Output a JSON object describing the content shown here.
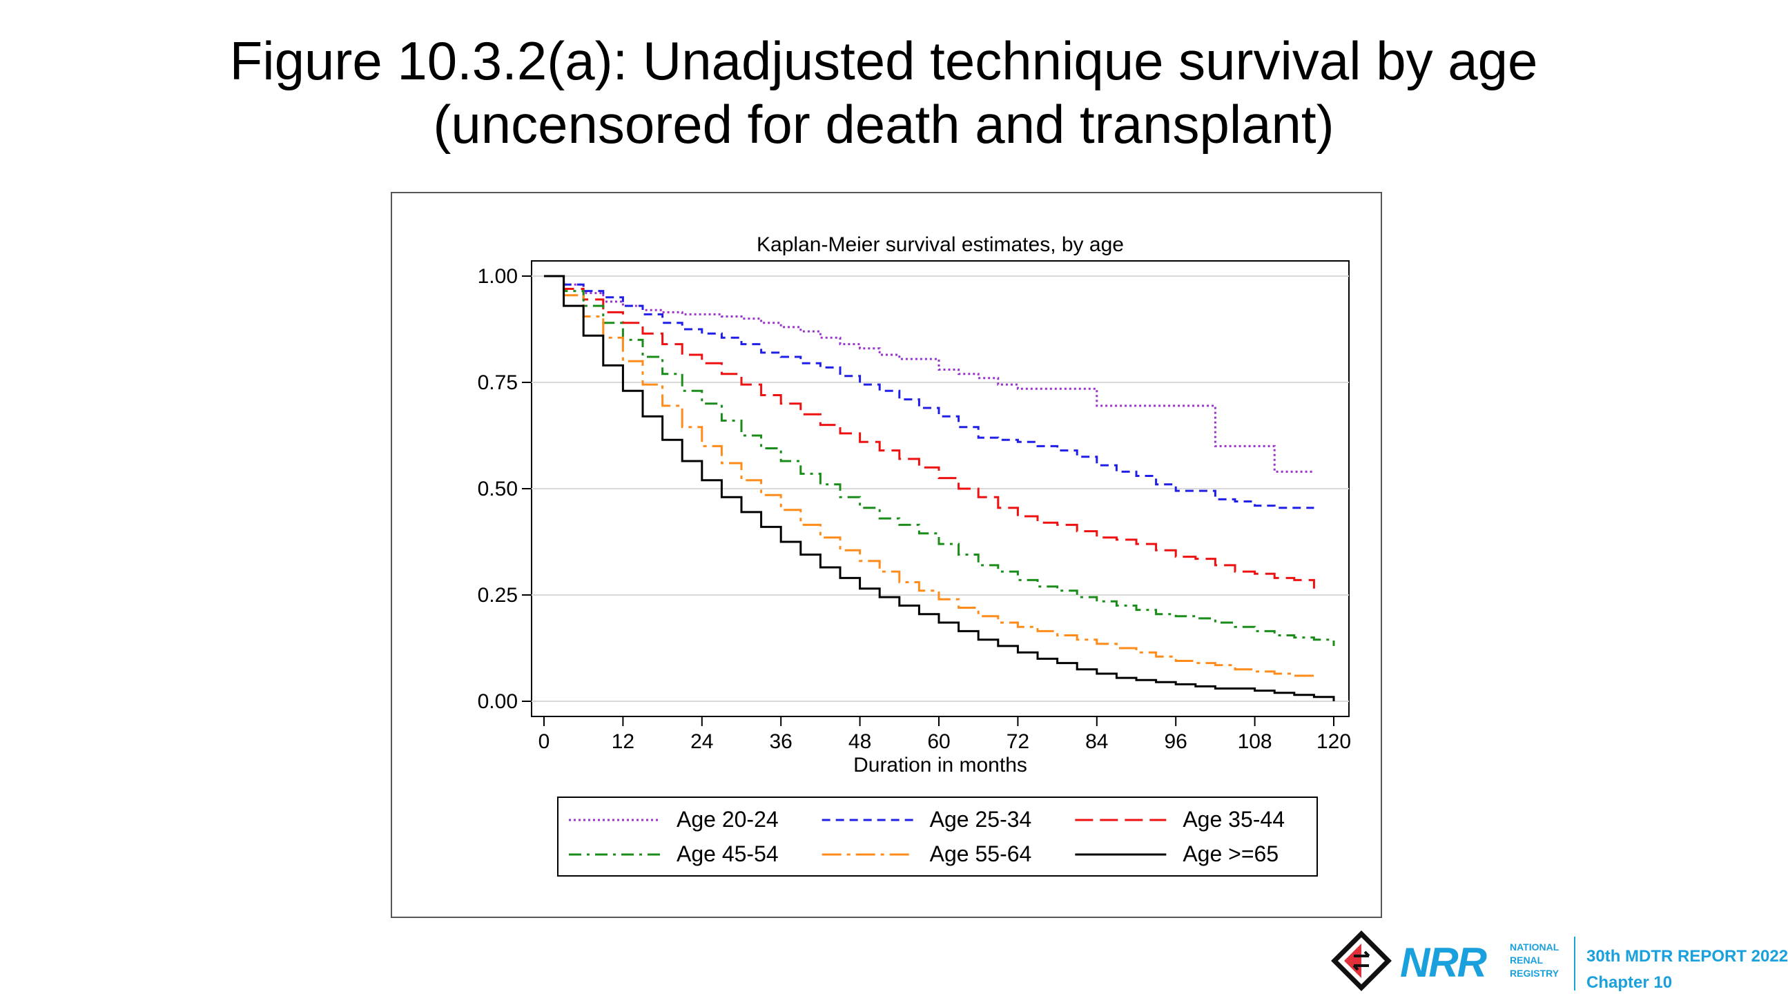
{
  "title": {
    "line1": "Figure 10.3.2(a): Unadjusted technique survival by age",
    "line2": "(uncensored for death and transplant)"
  },
  "chart_data": {
    "type": "line",
    "step": true,
    "title": "Kaplan-Meier survival estimates, by age",
    "xlabel": "Duration in months",
    "ylabel": "",
    "xlim": [
      0,
      120
    ],
    "ylim": [
      0,
      1
    ],
    "xticks": [
      "0",
      "12",
      "24",
      "36",
      "48",
      "60",
      "72",
      "84",
      "96",
      "108",
      "120"
    ],
    "yticks": [
      "0.00",
      "0.25",
      "0.50",
      "0.75",
      "1.00"
    ],
    "grid": "horizontal",
    "legend_position": "bottom",
    "series": [
      {
        "name": "Age 20-24",
        "color": "#9932cc",
        "dash": "dotted",
        "x": [
          0,
          3,
          6,
          9,
          12,
          15,
          18,
          21,
          24,
          27,
          30,
          33,
          36,
          39,
          42,
          45,
          48,
          51,
          54,
          57,
          60,
          63,
          66,
          69,
          72,
          75,
          78,
          81,
          84,
          87,
          90,
          93,
          96,
          99,
          102,
          105,
          108,
          111,
          114,
          117
        ],
        "values": [
          1.0,
          0.98,
          0.96,
          0.94,
          0.93,
          0.92,
          0.915,
          0.91,
          0.91,
          0.905,
          0.9,
          0.89,
          0.88,
          0.87,
          0.855,
          0.84,
          0.83,
          0.815,
          0.805,
          0.805,
          0.78,
          0.77,
          0.76,
          0.745,
          0.735,
          0.735,
          0.735,
          0.735,
          0.695,
          0.695,
          0.695,
          0.695,
          0.695,
          0.695,
          0.6,
          0.6,
          0.6,
          0.54,
          0.54,
          0.54
        ]
      },
      {
        "name": "Age 25-34",
        "color": "#1f1fe8",
        "dash": "dashed",
        "x": [
          0,
          3,
          6,
          9,
          12,
          15,
          18,
          21,
          24,
          27,
          30,
          33,
          36,
          39,
          42,
          45,
          48,
          51,
          54,
          57,
          60,
          63,
          66,
          69,
          72,
          75,
          78,
          81,
          84,
          87,
          90,
          93,
          96,
          99,
          102,
          105,
          108,
          111,
          114,
          117
        ],
        "values": [
          1.0,
          0.98,
          0.965,
          0.95,
          0.93,
          0.91,
          0.89,
          0.875,
          0.865,
          0.855,
          0.84,
          0.82,
          0.81,
          0.795,
          0.785,
          0.765,
          0.745,
          0.73,
          0.71,
          0.69,
          0.67,
          0.645,
          0.62,
          0.615,
          0.61,
          0.6,
          0.59,
          0.575,
          0.555,
          0.54,
          0.53,
          0.51,
          0.495,
          0.495,
          0.475,
          0.47,
          0.46,
          0.455,
          0.455,
          0.455
        ]
      },
      {
        "name": "Age 35-44",
        "color": "#ee1111",
        "dash": "longdash",
        "x": [
          0,
          3,
          6,
          9,
          12,
          15,
          18,
          21,
          24,
          27,
          30,
          33,
          36,
          39,
          42,
          45,
          48,
          51,
          54,
          57,
          60,
          63,
          66,
          69,
          72,
          75,
          78,
          81,
          84,
          87,
          90,
          93,
          96,
          99,
          102,
          105,
          108,
          111,
          114,
          117
        ],
        "values": [
          1.0,
          0.97,
          0.945,
          0.915,
          0.89,
          0.865,
          0.84,
          0.815,
          0.795,
          0.77,
          0.745,
          0.72,
          0.7,
          0.675,
          0.65,
          0.63,
          0.61,
          0.59,
          0.57,
          0.55,
          0.525,
          0.5,
          0.48,
          0.455,
          0.435,
          0.42,
          0.415,
          0.4,
          0.385,
          0.38,
          0.37,
          0.355,
          0.34,
          0.335,
          0.32,
          0.305,
          0.3,
          0.29,
          0.285,
          0.265
        ]
      },
      {
        "name": "Age 45-54",
        "color": "#1a8c1a",
        "dash": "dashdot",
        "x": [
          0,
          3,
          6,
          9,
          12,
          15,
          18,
          21,
          24,
          27,
          30,
          33,
          36,
          39,
          42,
          45,
          48,
          51,
          54,
          57,
          60,
          63,
          66,
          69,
          72,
          75,
          78,
          81,
          84,
          87,
          90,
          93,
          96,
          99,
          102,
          105,
          108,
          111,
          114,
          117,
          120
        ],
        "values": [
          1.0,
          0.965,
          0.93,
          0.89,
          0.85,
          0.81,
          0.77,
          0.73,
          0.7,
          0.66,
          0.625,
          0.595,
          0.565,
          0.535,
          0.51,
          0.48,
          0.455,
          0.43,
          0.415,
          0.395,
          0.37,
          0.345,
          0.32,
          0.305,
          0.285,
          0.27,
          0.26,
          0.245,
          0.235,
          0.225,
          0.215,
          0.205,
          0.2,
          0.195,
          0.185,
          0.175,
          0.165,
          0.155,
          0.15,
          0.145,
          0.13
        ]
      },
      {
        "name": "Age 55-64",
        "color": "#ff8c1a",
        "dash": "longdashdot",
        "x": [
          0,
          3,
          6,
          9,
          12,
          15,
          18,
          21,
          24,
          27,
          30,
          33,
          36,
          39,
          42,
          45,
          48,
          51,
          54,
          57,
          60,
          63,
          66,
          69,
          72,
          75,
          78,
          81,
          84,
          87,
          90,
          93,
          96,
          99,
          102,
          105,
          108,
          111,
          114,
          117
        ],
        "values": [
          1.0,
          0.955,
          0.905,
          0.855,
          0.8,
          0.745,
          0.695,
          0.645,
          0.6,
          0.56,
          0.52,
          0.485,
          0.45,
          0.415,
          0.385,
          0.355,
          0.33,
          0.305,
          0.28,
          0.26,
          0.24,
          0.22,
          0.2,
          0.185,
          0.175,
          0.165,
          0.155,
          0.145,
          0.135,
          0.125,
          0.115,
          0.105,
          0.095,
          0.09,
          0.085,
          0.075,
          0.07,
          0.065,
          0.06,
          0.055
        ]
      },
      {
        "name": "Age >=65",
        "color": "#000000",
        "dash": "solid",
        "x": [
          0,
          3,
          6,
          9,
          12,
          15,
          18,
          21,
          24,
          27,
          30,
          33,
          36,
          39,
          42,
          45,
          48,
          51,
          54,
          57,
          60,
          63,
          66,
          69,
          72,
          75,
          78,
          81,
          84,
          87,
          90,
          93,
          96,
          99,
          102,
          105,
          108,
          111,
          114,
          117,
          120
        ],
        "values": [
          1.0,
          0.93,
          0.86,
          0.79,
          0.73,
          0.67,
          0.615,
          0.565,
          0.52,
          0.48,
          0.445,
          0.41,
          0.375,
          0.345,
          0.315,
          0.29,
          0.265,
          0.245,
          0.225,
          0.205,
          0.185,
          0.165,
          0.145,
          0.13,
          0.115,
          0.1,
          0.09,
          0.075,
          0.065,
          0.055,
          0.05,
          0.045,
          0.04,
          0.035,
          0.03,
          0.03,
          0.025,
          0.02,
          0.015,
          0.01,
          0.0
        ]
      }
    ]
  },
  "footer": {
    "logo_text": "NRR",
    "logo_subtext": [
      "NATIONAL",
      "RENAL",
      "REGISTRY"
    ],
    "report_line1": "30th MDTR REPORT 2022",
    "report_line2": "Chapter 10",
    "brand_color": "#1aa0dc"
  }
}
